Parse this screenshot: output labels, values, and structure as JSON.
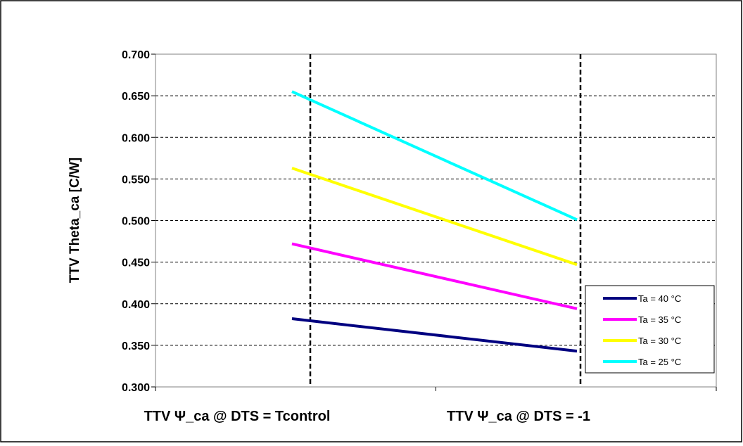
{
  "chart_data": {
    "type": "line",
    "title": "",
    "xlabel": "",
    "ylabel": "TTV Theta_ca [C/W]",
    "categories": [
      "TTV Ψ_ca @ DTS = Tcontrol",
      "TTV Ψ_ca @ DTS = -1"
    ],
    "ylim": [
      0.3,
      0.7
    ],
    "yticks": [
      "0.300",
      "0.350",
      "0.400",
      "0.450",
      "0.500",
      "0.550",
      "0.600",
      "0.650",
      "0.700"
    ],
    "ytick_values": [
      0.3,
      0.35,
      0.4,
      0.45,
      0.5,
      0.55,
      0.6,
      0.65,
      0.7
    ],
    "grid": true,
    "legend_position": "bottom-right",
    "series": [
      {
        "name": "Ta = 40 °C",
        "color": "#000080",
        "values": [
          0.382,
          0.343
        ]
      },
      {
        "name": "Ta = 35 °C",
        "color": "#ff00ff",
        "values": [
          0.472,
          0.394
        ]
      },
      {
        "name": "Ta = 30 °C",
        "color": "#ffff00",
        "values": [
          0.563,
          0.447
        ]
      },
      {
        "name": "Ta = 25 °C",
        "color": "#00ffff",
        "values": [
          0.655,
          0.501
        ]
      }
    ]
  }
}
